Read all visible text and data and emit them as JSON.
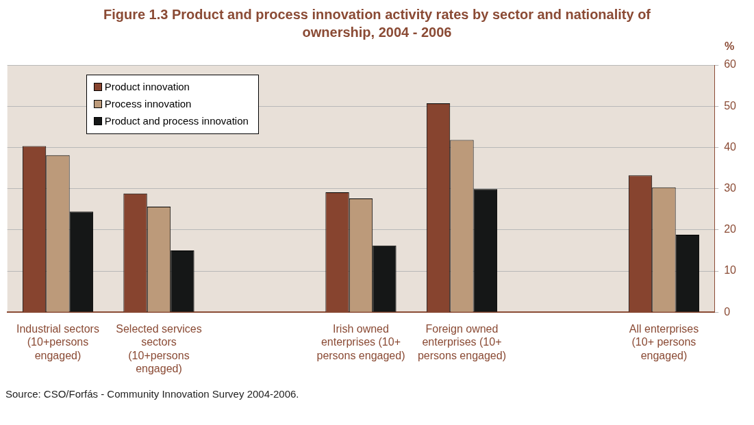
{
  "chart_data": {
    "type": "bar",
    "title": "Figure 1.3 Product and process innovation activity rates by sector and nationality of ownership, 2004 - 2006",
    "ylabel": "%",
    "categories": [
      "Industrial sectors (10+persons engaged)",
      "Selected services sectors (10+persons engaged)",
      null,
      "Irish owned enterprises (10+ persons engaged)",
      "Foreign owned enterprises (10+ persons engaged)",
      null,
      "All enterprises (10+ persons engaged)"
    ],
    "series": [
      {
        "name": "Product innovation",
        "color": "#87442f",
        "values": [
          40.3,
          28.8,
          null,
          29.1,
          50.7,
          null,
          33.2
        ]
      },
      {
        "name": "Process innovation",
        "color": "#bc9a7a",
        "values": [
          38.1,
          25.6,
          null,
          27.6,
          41.8,
          null,
          30.3
        ]
      },
      {
        "name": "Product and process innovation",
        "color": "#151717",
        "values": [
          24.4,
          15.0,
          null,
          16.2,
          29.9,
          null,
          18.8
        ]
      }
    ],
    "ylim": [
      0,
      60
    ],
    "yticks": [
      0,
      10,
      20,
      30,
      40,
      50,
      60
    ],
    "grid": "y",
    "legend": "top left",
    "annotations": [
      "Source: CSO/Forfás - Community Innovation Survey 2004-2006."
    ]
  }
}
